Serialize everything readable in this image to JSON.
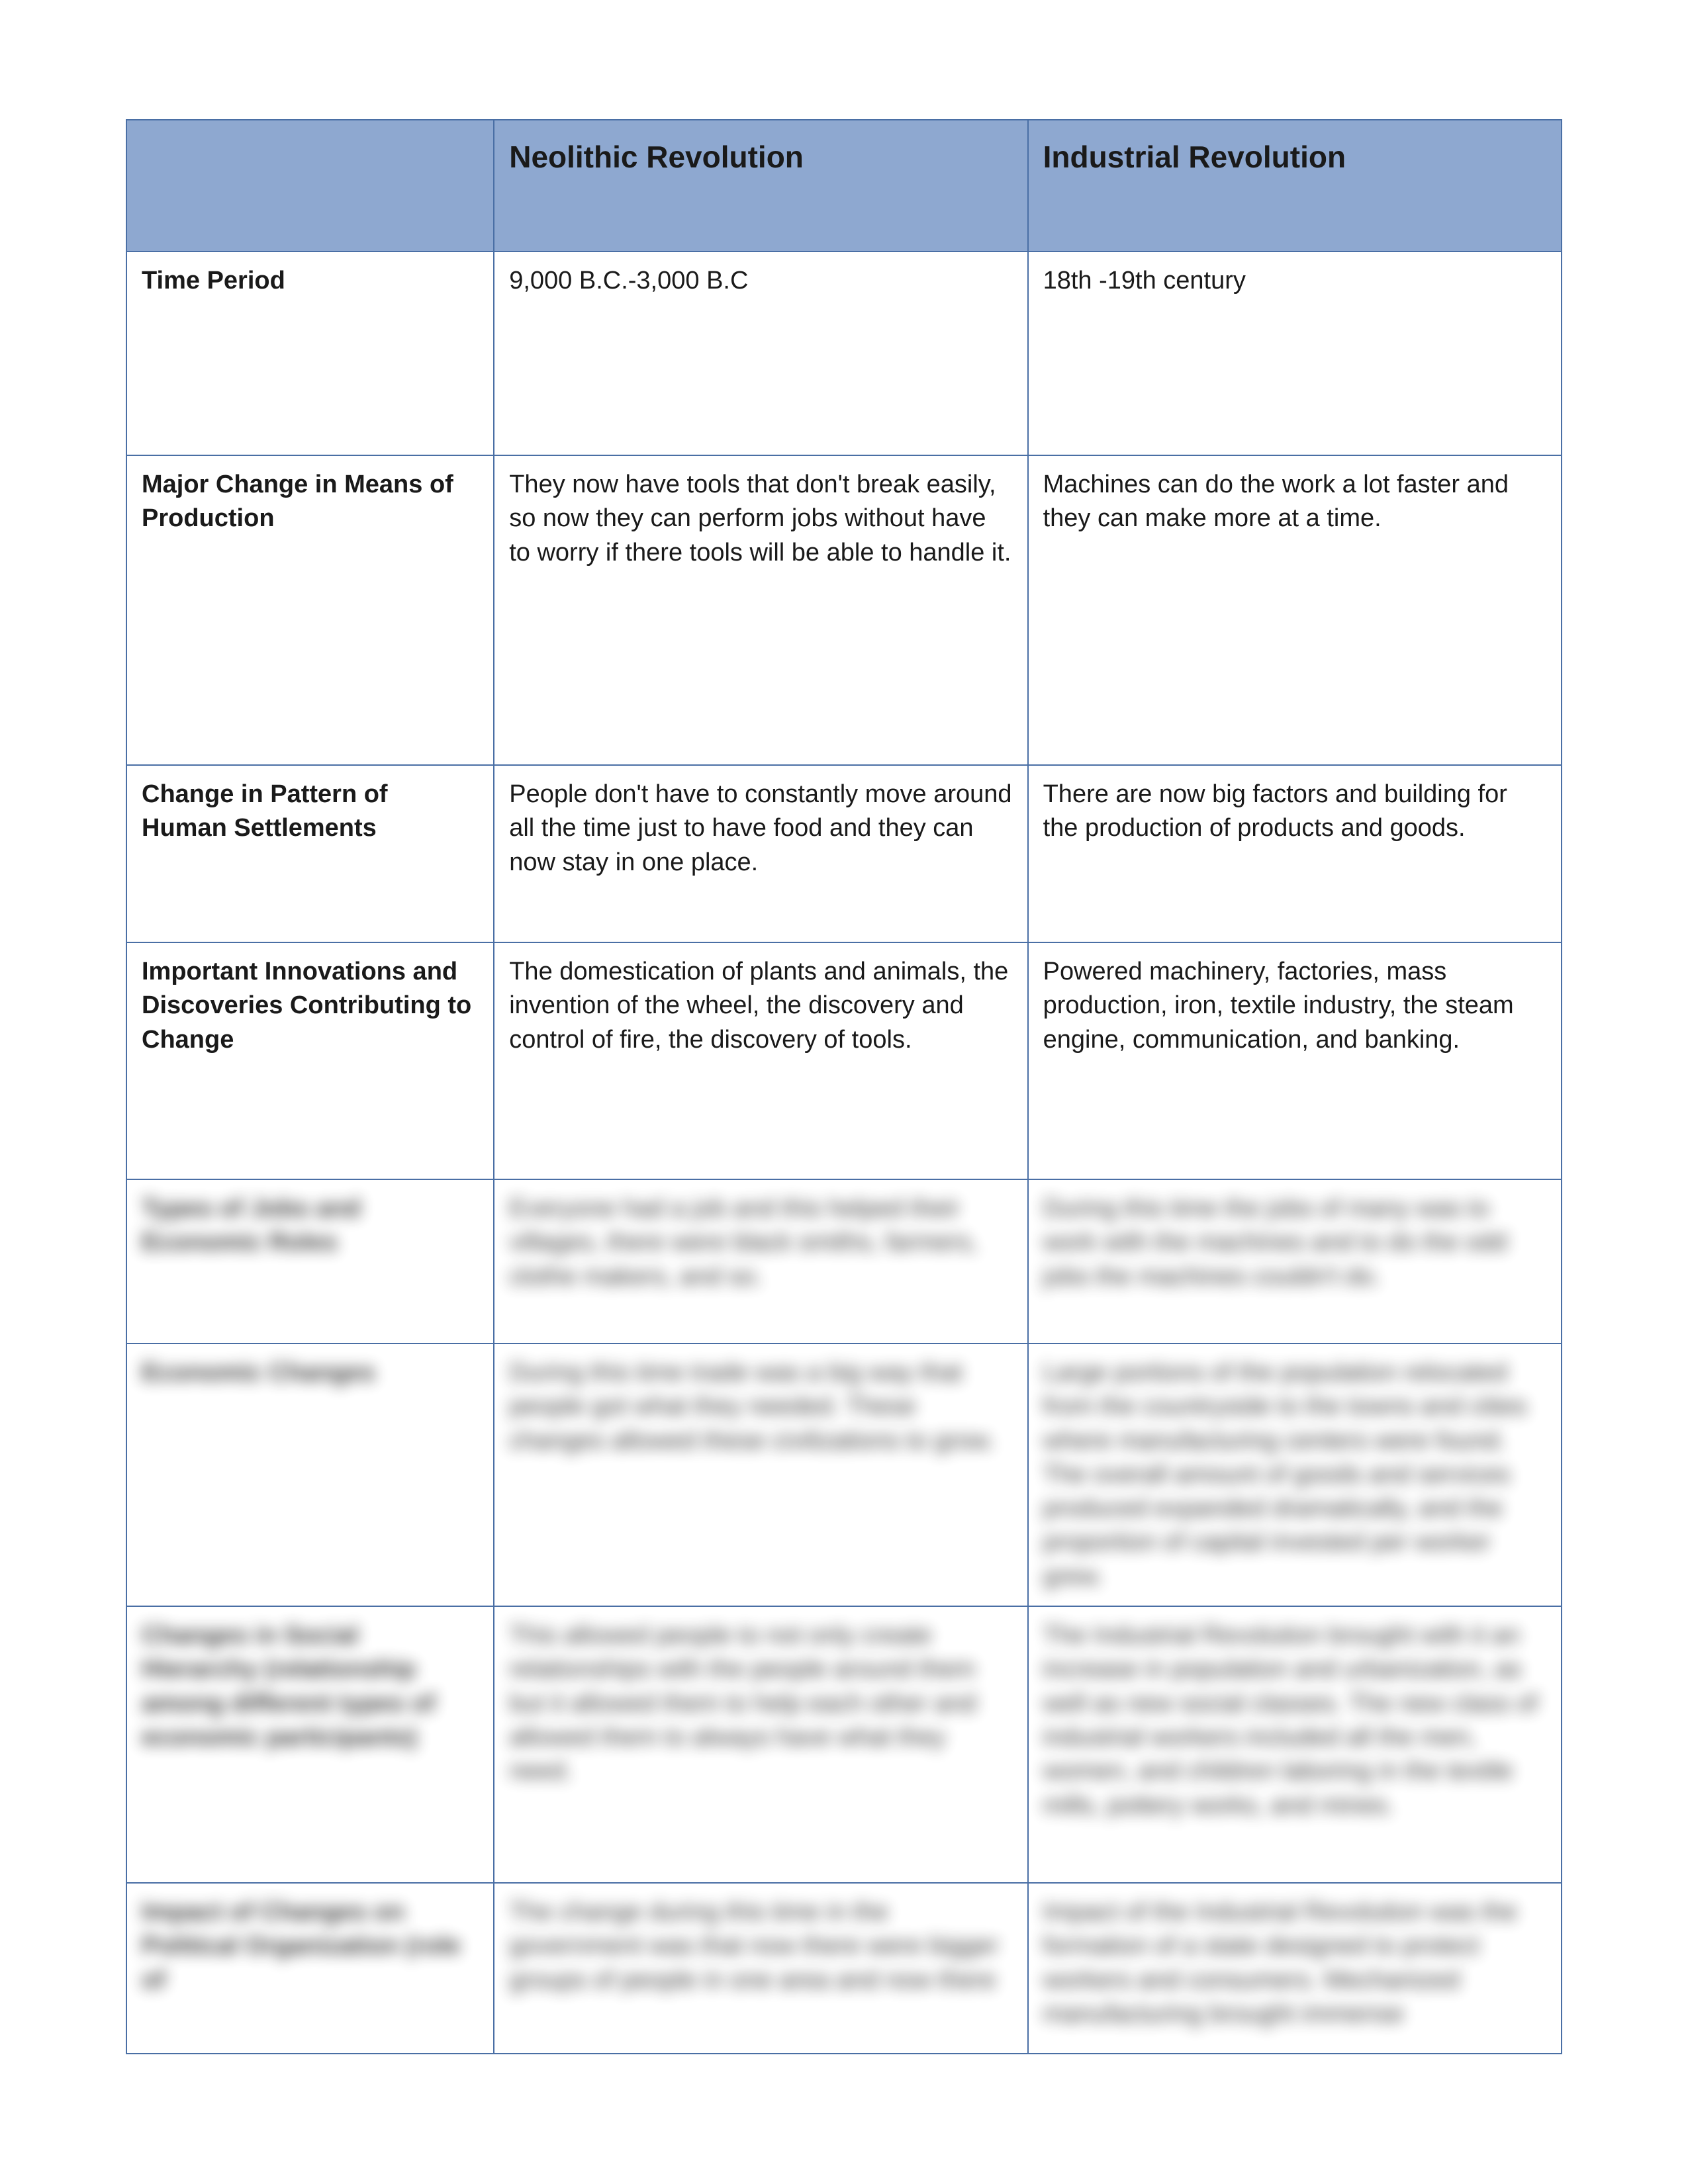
{
  "colors": {
    "header_bg": "#8ea8d0",
    "border": "#4a6fa5",
    "text": "#1a1a1a",
    "page_bg": "#ffffff"
  },
  "fonts": {
    "header_size_pt": 46,
    "body_size_pt": 38,
    "family": "Arial"
  },
  "columns": {
    "rowHeader": "",
    "col1": "Neolithic Revolution",
    "col2": "Industrial Revolution"
  },
  "rows": {
    "time": {
      "label": "Time Period",
      "neo": "9,000 B.C.-3,000 B.C",
      "ind": "18th -19th century"
    },
    "means": {
      "label": "Major Change in Means of Production",
      "neo": "They now have tools that don't break easily, so now they can perform jobs without have to worry if there tools will be able to handle it.",
      "ind": "Machines can do the work a lot faster and they can make more at a time."
    },
    "settle": {
      "label": "Change in Pattern of Human Settlements",
      "neo": "People don't have to constantly move around all the time just to have food and they can now stay in one place.",
      "ind": "There are now big factors and building for the production of products and goods."
    },
    "innov": {
      "label": "Important Innovations and Discoveries Contributing to Change",
      "neo": "The domestication of plants and animals, the invention of the wheel, the discovery and control of fire, the discovery of tools.",
      "ind": "Powered machinery, factories, mass production, iron, textile industry, the steam engine, communication, and banking."
    },
    "jobs": {
      "label": "Types of Jobs and Economic Roles",
      "neo": "Everyone had a job and this helped their villages, there were black smiths, farmers, clothe makers, and so.",
      "ind": "During this time the jobs of many was to work with the machines and to do the odd jobs the machines couldn't do."
    },
    "econ": {
      "label": "Economic Changes",
      "neo": "During this time trade was a big way that people got what they needed. These changes allowed these civilizations to grow.",
      "ind": "Large portions of the population relocated from the countryside to the towns and cities where manufacturing centers were found. The overall amount of goods and services produced expanded dramatically, and the proportion of capital invested per worker grew."
    },
    "social": {
      "label": "Changes in Social Hierarchy (relationship among different types of economic participants)",
      "neo": "This allowed people to not only create relationships with the people around them but it allowed them to help each other and allowed them to always have what they need.",
      "ind": "The Industrial Revolution brought with it an increase in population and urbanization, as well as new social classes. The new class of industrial workers included all the men, women, and children laboring in the textile mills, pottery works, and mines."
    },
    "polit": {
      "label": "Impact of Changes on Political Organization (role of",
      "neo": "The change during this time in the government was that now there were bigger groups of people in one area and now there",
      "ind": "Impact of the Industrial Revolution was the formation of a state designed to protect workers and consumers. Mechanized manufacturing brought immense"
    }
  }
}
